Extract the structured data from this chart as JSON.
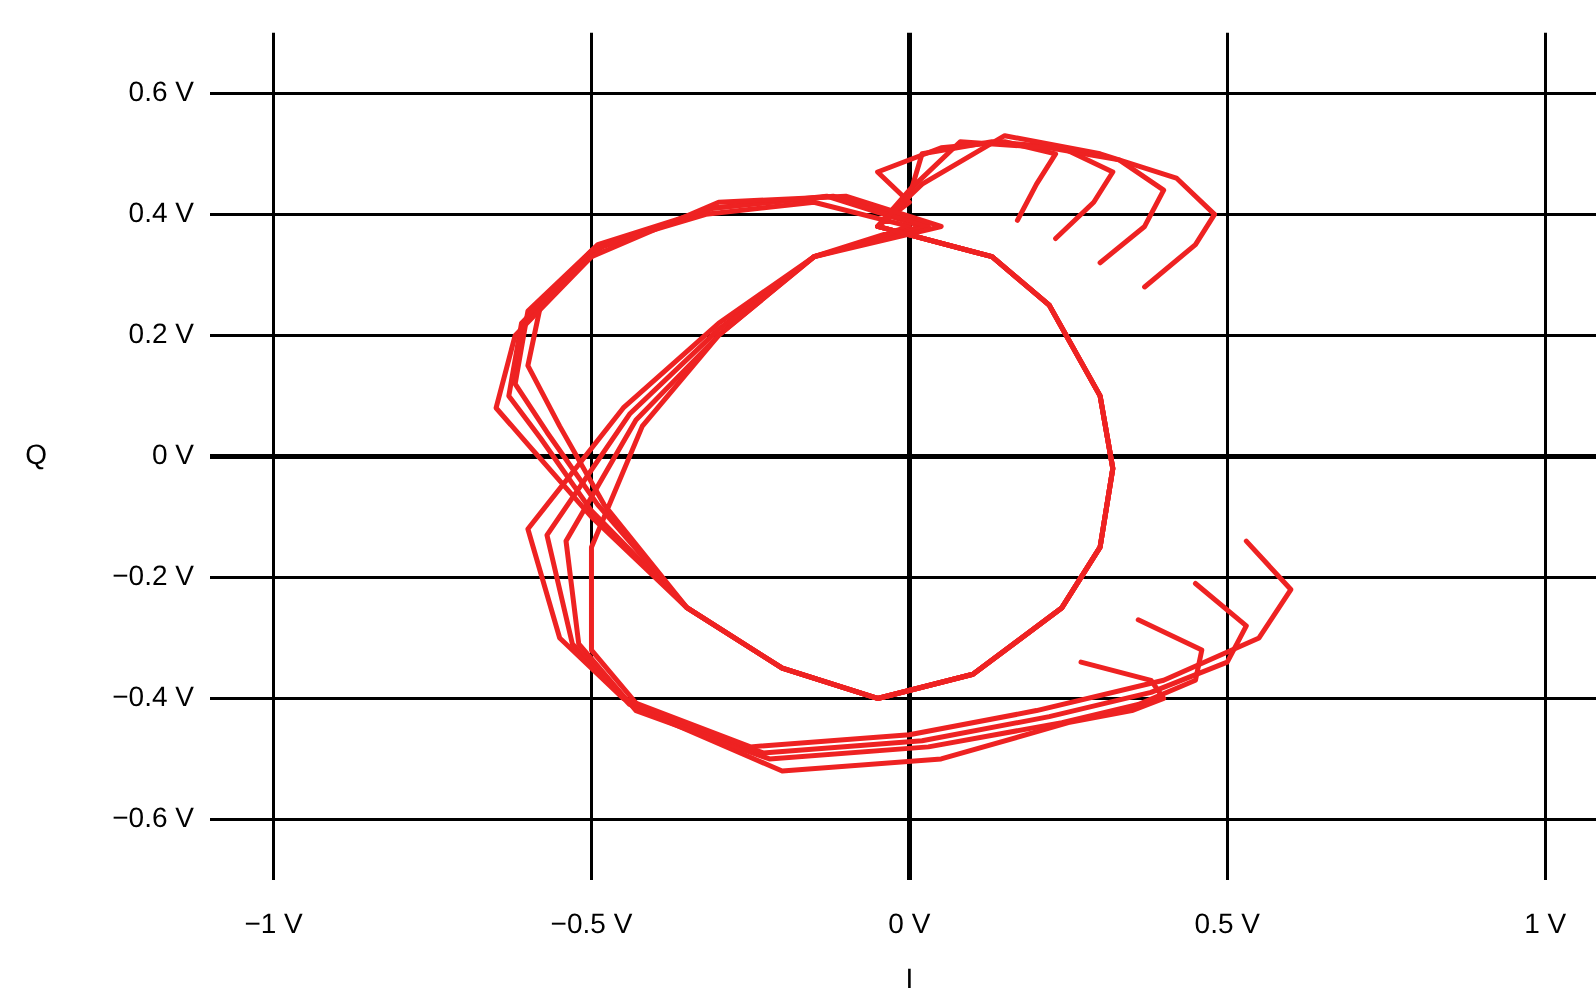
{
  "chart_data": {
    "type": "line",
    "xlabel": "I",
    "ylabel": "Q",
    "xlim": [
      -1.1,
      1.08
    ],
    "ylim": [
      -0.7,
      0.7
    ],
    "xticks": [
      {
        "value": -1,
        "label": "−1 V"
      },
      {
        "value": -0.5,
        "label": "−0.5 V"
      },
      {
        "value": 0,
        "label": "0 V"
      },
      {
        "value": 0.5,
        "label": "0.5 V"
      },
      {
        "value": 1,
        "label": "1 V"
      }
    ],
    "yticks": [
      {
        "value": -0.6,
        "label": "−0.6 V"
      },
      {
        "value": -0.4,
        "label": "−0.4 V"
      },
      {
        "value": -0.2,
        "label": "−0.2 V"
      },
      {
        "value": 0,
        "label": "0 V"
      },
      {
        "value": 0.2,
        "label": "0.2 V"
      },
      {
        "value": 0.4,
        "label": "0.4 V"
      },
      {
        "value": 0.6,
        "label": "0.6 V"
      }
    ],
    "grid": true,
    "marker": "none",
    "line_style": "solid",
    "series": [
      {
        "color": "#ee2222",
        "x": [
          0.37,
          0.45,
          0.48,
          0.42,
          0.3,
          0.15,
          0.02,
          -0.05,
          0.13,
          0.22,
          0.3,
          0.32,
          0.3,
          0.24,
          0.1,
          -0.05,
          -0.2,
          -0.35,
          -0.5,
          -0.6,
          -0.65,
          -0.62,
          -0.5,
          -0.3,
          -0.1,
          0.05,
          -0.15,
          -0.3,
          -0.45,
          -0.6,
          -0.55,
          -0.45,
          -0.25,
          0,
          0.2,
          0.4,
          0.55,
          0.6,
          0.53
        ],
        "values": [
          0.28,
          0.35,
          0.4,
          0.46,
          0.5,
          0.53,
          0.45,
          0.38,
          0.33,
          0.25,
          0.1,
          -0.02,
          -0.15,
          -0.25,
          -0.36,
          -0.4,
          -0.35,
          -0.25,
          -0.1,
          0.02,
          0.08,
          0.2,
          0.33,
          0.42,
          0.43,
          0.38,
          0.33,
          0.22,
          0.08,
          -0.12,
          -0.3,
          -0.4,
          -0.48,
          -0.46,
          -0.42,
          -0.37,
          -0.3,
          -0.22,
          -0.14
        ]
      },
      {
        "color": "#ee2222",
        "x": [
          0.3,
          0.37,
          0.4,
          0.33,
          0.22,
          0.08,
          0.0,
          -0.05,
          0.13,
          0.22,
          0.3,
          0.32,
          0.3,
          0.24,
          0.1,
          -0.05,
          -0.2,
          -0.35,
          -0.5,
          -0.58,
          -0.63,
          -0.61,
          -0.5,
          -0.31,
          -0.12,
          0.03,
          -0.15,
          -0.3,
          -0.44,
          -0.57,
          -0.53,
          -0.44,
          -0.23,
          0.02,
          0.22,
          0.38,
          0.5,
          0.53,
          0.45
        ],
        "values": [
          0.32,
          0.38,
          0.44,
          0.49,
          0.51,
          0.52,
          0.44,
          0.38,
          0.33,
          0.25,
          0.1,
          -0.02,
          -0.15,
          -0.25,
          -0.36,
          -0.4,
          -0.35,
          -0.25,
          -0.09,
          0.03,
          0.1,
          0.22,
          0.34,
          0.41,
          0.43,
          0.38,
          0.33,
          0.21,
          0.07,
          -0.13,
          -0.31,
          -0.41,
          -0.49,
          -0.47,
          -0.43,
          -0.39,
          -0.34,
          -0.28,
          -0.21
        ]
      },
      {
        "color": "#ee2222",
        "x": [
          0.23,
          0.29,
          0.32,
          0.24,
          0.13,
          0.02,
          0.0,
          -0.05,
          0.13,
          0.22,
          0.3,
          0.32,
          0.3,
          0.24,
          0.1,
          -0.05,
          -0.2,
          -0.35,
          -0.49,
          -0.57,
          -0.62,
          -0.6,
          -0.49,
          -0.31,
          -0.13,
          0.02,
          -0.15,
          -0.3,
          -0.43,
          -0.54,
          -0.52,
          -0.43,
          -0.22,
          0.03,
          0.24,
          0.36,
          0.45,
          0.46,
          0.36
        ],
        "values": [
          0.36,
          0.42,
          0.47,
          0.51,
          0.52,
          0.5,
          0.43,
          0.38,
          0.33,
          0.25,
          0.1,
          -0.02,
          -0.15,
          -0.25,
          -0.36,
          -0.4,
          -0.35,
          -0.25,
          -0.08,
          0.04,
          0.12,
          0.24,
          0.35,
          0.41,
          0.43,
          0.38,
          0.33,
          0.2,
          0.06,
          -0.14,
          -0.31,
          -0.42,
          -0.5,
          -0.48,
          -0.44,
          -0.41,
          -0.37,
          -0.32,
          -0.27
        ]
      },
      {
        "color": "#ee2222",
        "x": [
          0.17,
          0.2,
          0.23,
          0.15,
          0.05,
          -0.05,
          0.0,
          -0.05,
          0.13,
          0.22,
          0.3,
          0.32,
          0.3,
          0.24,
          0.1,
          -0.05,
          -0.2,
          -0.35,
          -0.48,
          -0.55,
          -0.6,
          -0.58,
          -0.48,
          -0.32,
          -0.15,
          0.0,
          -0.15,
          -0.3,
          -0.42,
          -0.5,
          -0.5,
          -0.42,
          -0.2,
          0.05,
          0.25,
          0.35,
          0.4,
          0.38,
          0.27
        ],
        "values": [
          0.39,
          0.45,
          0.5,
          0.52,
          0.51,
          0.47,
          0.42,
          0.38,
          0.33,
          0.25,
          0.1,
          -0.02,
          -0.15,
          -0.25,
          -0.36,
          -0.4,
          -0.35,
          -0.25,
          -0.08,
          0.05,
          0.15,
          0.25,
          0.35,
          0.4,
          0.42,
          0.38,
          0.33,
          0.2,
          0.05,
          -0.15,
          -0.32,
          -0.42,
          -0.52,
          -0.5,
          -0.44,
          -0.42,
          -0.4,
          -0.37,
          -0.34
        ]
      }
    ]
  }
}
